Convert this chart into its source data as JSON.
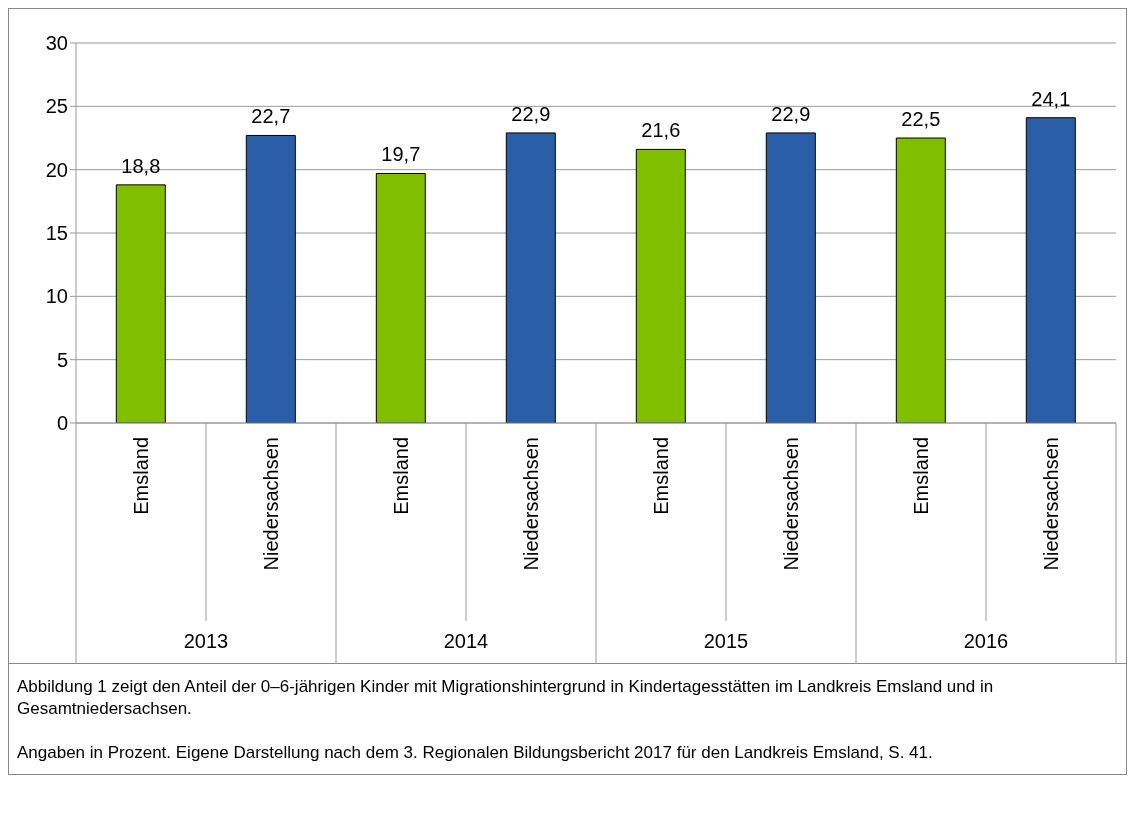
{
  "chart_data": {
    "type": "bar",
    "categories": [
      "Emsland",
      "Niedersachsen",
      "Emsland",
      "Niedersachsen",
      "Emsland",
      "Niedersachsen",
      "Emsland",
      "Niedersachsen"
    ],
    "values": [
      18.8,
      22.7,
      19.7,
      22.9,
      21.6,
      22.9,
      22.5,
      24.1
    ],
    "colors": [
      "#7fbf00",
      "#2a5fa8",
      "#7fbf00",
      "#2a5fa8",
      "#7fbf00",
      "#2a5fa8",
      "#7fbf00",
      "#2a5fa8"
    ],
    "ylim": [
      0,
      30
    ],
    "yticks": [
      0,
      5,
      10,
      15,
      20,
      25,
      30
    ],
    "grid": "y",
    "value_labels": [
      "18,8",
      "22,7",
      "19,7",
      "22,9",
      "21,6",
      "22,9",
      "22,5",
      "24,1"
    ],
    "annotations": [
      "2013",
      "2014",
      "2015",
      "2016",
      "Abbildung 1 zeigt den Anteil der 0–6-jährigen Kinder mit Migrationshintergrund in Kindertagesstätten im Landkreis Emsland und in Gesamtniedersachsen.",
      "Angaben in Prozent. Eigene Darstellung nach dem 3. Regionalen Bildungsbericht 2017 für den Landkreis Emsland, S. 41."
    ]
  }
}
